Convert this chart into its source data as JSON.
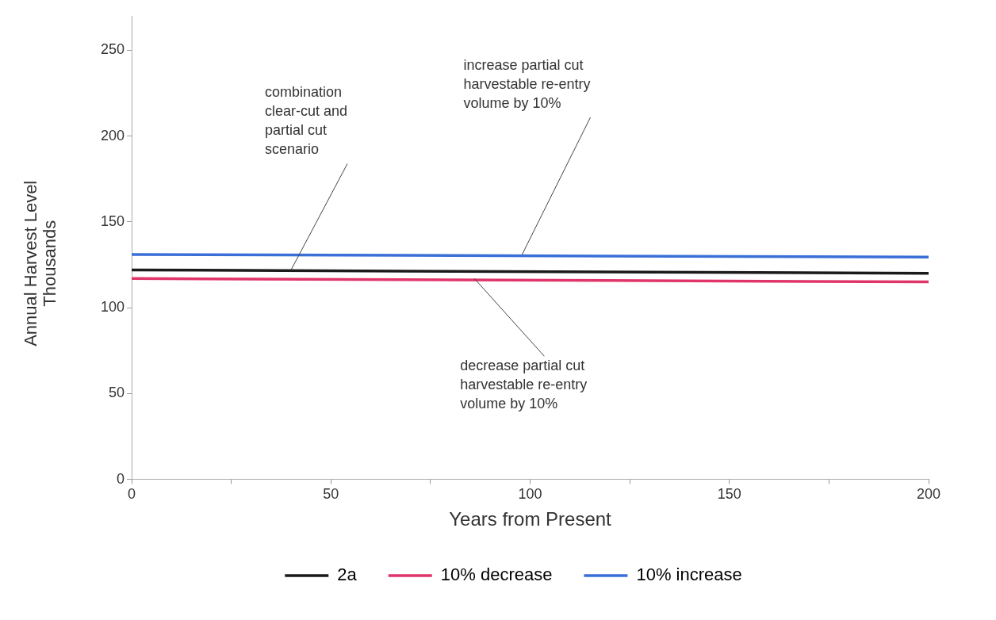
{
  "chart_data": {
    "type": "line",
    "xlabel": "Years from Present",
    "ylabel": "Annual Harvest Level Thousands",
    "x": [
      0,
      200
    ],
    "series": [
      {
        "name": "2a",
        "color": "#1a1a1a",
        "values": [
          122,
          120
        ]
      },
      {
        "name": "10% decrease",
        "color": "#e0356a",
        "values": [
          117,
          115
        ]
      },
      {
        "name": "10% increase",
        "color": "#3a6fd8",
        "values": [
          131,
          129.5
        ]
      }
    ],
    "xlim": [
      0,
      200
    ],
    "xticks": [
      0,
      {
        "value": 25,
        "label": null
      },
      50,
      {
        "value": 75,
        "label": null
      },
      100,
      {
        "value": 125,
        "label": null
      },
      150,
      {
        "value": 175,
        "label": null
      },
      200
    ],
    "ylim": [
      0,
      270
    ],
    "yticks": [
      0,
      50,
      100,
      150,
      200,
      250
    ],
    "grid": false,
    "legend": "bottom",
    "marker": "none",
    "line_style": "solid",
    "annotations": [
      {
        "text": "combination clear-cut and partial cut scenario",
        "x": 40,
        "y": 122
      },
      {
        "text": "increase partial cut harvestable re-entry volume by 10%",
        "x": 98,
        "y": 131
      },
      {
        "text": "decrease partial cut harvestable re-entry volume by 10%",
        "x": 86,
        "y": 117
      }
    ]
  }
}
